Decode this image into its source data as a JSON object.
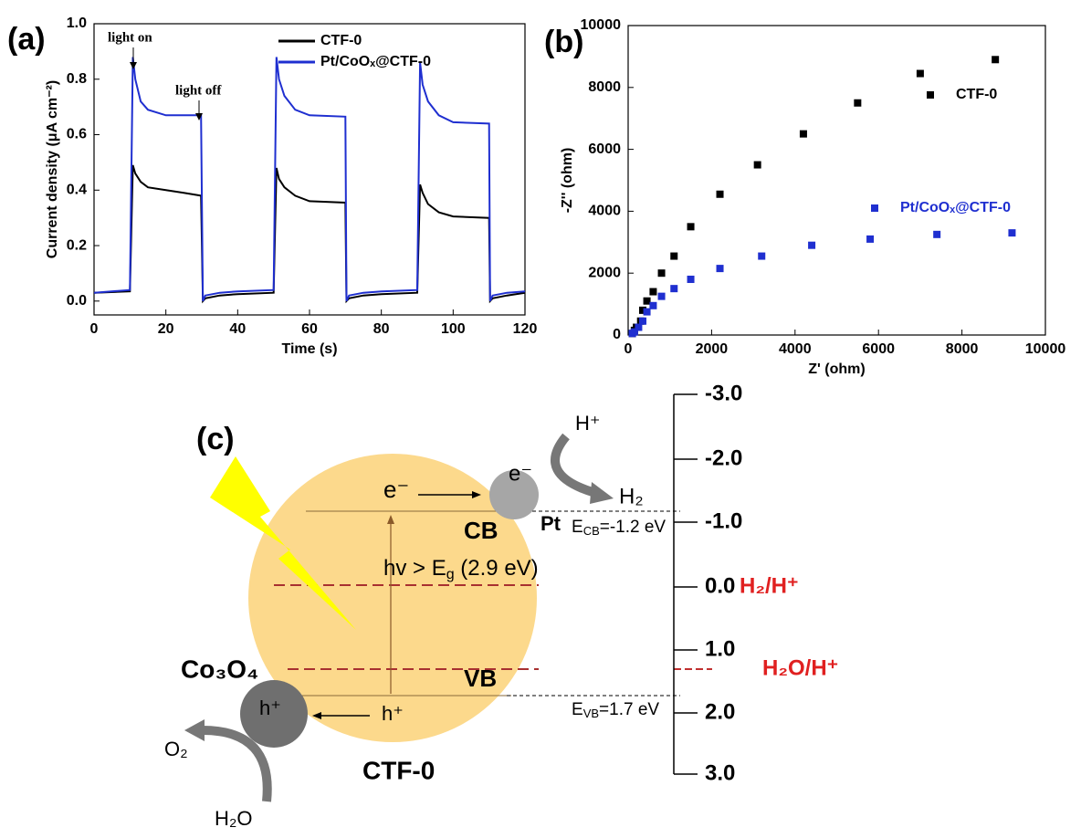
{
  "chart_data": [
    {
      "type": "line",
      "panel": "(a)",
      "x_label": "Time (s)",
      "y_label": "Current density (μA cm⁻²)",
      "x": [
        0,
        10,
        10.8,
        11.5,
        13,
        15,
        20,
        25,
        29.8,
        30.3,
        31,
        35,
        40,
        50,
        50.8,
        51.5,
        53,
        56,
        60,
        70,
        70.3,
        71,
        75,
        80,
        90,
        90.8,
        91.5,
        93,
        96,
        100,
        110,
        110.3,
        111,
        115,
        120
      ],
      "series": [
        {
          "name": "CTF-0",
          "color": "#000000",
          "values": [
            0.03,
            0.035,
            0.49,
            0.46,
            0.43,
            0.41,
            0.4,
            0.39,
            0.38,
            0.0,
            0.01,
            0.02,
            0.025,
            0.03,
            0.48,
            0.44,
            0.41,
            0.38,
            0.36,
            0.355,
            0.0,
            0.01,
            0.02,
            0.025,
            0.03,
            0.42,
            0.39,
            0.35,
            0.32,
            0.305,
            0.3,
            0.0,
            0.01,
            0.02,
            0.03
          ]
        },
        {
          "name": "Pt/CoOₓ@CTF-0",
          "color": "#1f2fd0",
          "values": [
            0.03,
            0.04,
            0.88,
            0.8,
            0.72,
            0.69,
            0.67,
            0.67,
            0.67,
            0.0,
            0.02,
            0.03,
            0.035,
            0.04,
            0.88,
            0.8,
            0.74,
            0.69,
            0.67,
            0.665,
            0.0,
            0.02,
            0.03,
            0.035,
            0.04,
            0.86,
            0.78,
            0.72,
            0.67,
            0.645,
            0.64,
            0.0,
            0.02,
            0.03,
            0.035
          ]
        }
      ],
      "annotations": [
        "light on",
        "light off"
      ],
      "xlim": [
        0,
        120
      ],
      "xticks": [
        0,
        20,
        40,
        60,
        80,
        100,
        120
      ],
      "ylim": [
        -0.05,
        1.0
      ],
      "yticks": [
        {
          "value": 0,
          "label": "0.0"
        },
        {
          "value": 0.2,
          "label": "0.2"
        },
        {
          "value": 0.4,
          "label": "0.4"
        },
        {
          "value": 0.6,
          "label": "0.6"
        },
        {
          "value": 0.8,
          "label": "0.8"
        },
        {
          "value": 1.0,
          "label": "1.0"
        }
      ]
    },
    {
      "type": "scatter",
      "panel": "(b)",
      "x_label": "Z' (ohm)",
      "y_label": "-Z'' (ohm)",
      "series": [
        {
          "name": "CTF-0",
          "color": "#000000",
          "x": [
            100,
            150,
            200,
            300,
            350,
            450,
            600,
            800,
            1100,
            1500,
            2200,
            3100,
            4200,
            5500,
            7000,
            8800
          ],
          "values": [
            50,
            150,
            250,
            450,
            800,
            1100,
            1400,
            2000,
            2550,
            3500,
            4550,
            5500,
            6500,
            7500,
            8450,
            8900
          ]
        },
        {
          "name": "Pt/CoOₓ@CTF-0",
          "color": "#1f2fd0",
          "x": [
            100,
            150,
            250,
            350,
            450,
            600,
            800,
            1100,
            1500,
            2200,
            3200,
            4400,
            5800,
            7400,
            9200
          ],
          "values": [
            50,
            100,
            250,
            450,
            750,
            950,
            1250,
            1500,
            1800,
            2150,
            2550,
            2900,
            3100,
            3250,
            3300
          ]
        }
      ],
      "xlim": [
        0,
        10000
      ],
      "xticks": [
        0,
        2000,
        4000,
        6000,
        8000,
        10000
      ],
      "ylim": [
        0,
        10000
      ],
      "yticks": [
        0,
        2000,
        4000,
        6000,
        8000,
        10000
      ]
    }
  ],
  "diagram": {
    "label": "(c)",
    "electron_cb": "e⁻",
    "electron_pt": "e⁻",
    "proton": "H⁺",
    "hydrogen": "H₂",
    "cb": "CB",
    "pt": "Pt",
    "e_cb": [
      "E",
      "CB",
      "=-1.2 eV"
    ],
    "excitation": [
      "hv > E",
      "g",
      " (2.9 eV)"
    ],
    "vb": "VB",
    "e_vb": [
      "E",
      "VB",
      "=1.7 eV"
    ],
    "cocatalyst": "Co₃O₄",
    "hole_co": "h⁺",
    "hole_vb": "h⁺",
    "oxygen": "O₂",
    "water": "H₂O",
    "material": "CTF-0",
    "scale": [
      "-3.0",
      "-2.0",
      "-1.0",
      "0.0",
      "1.0",
      "2.0",
      "3.0"
    ],
    "couples": [
      "H₂/H⁺",
      "H₂O/H⁺"
    ]
  }
}
